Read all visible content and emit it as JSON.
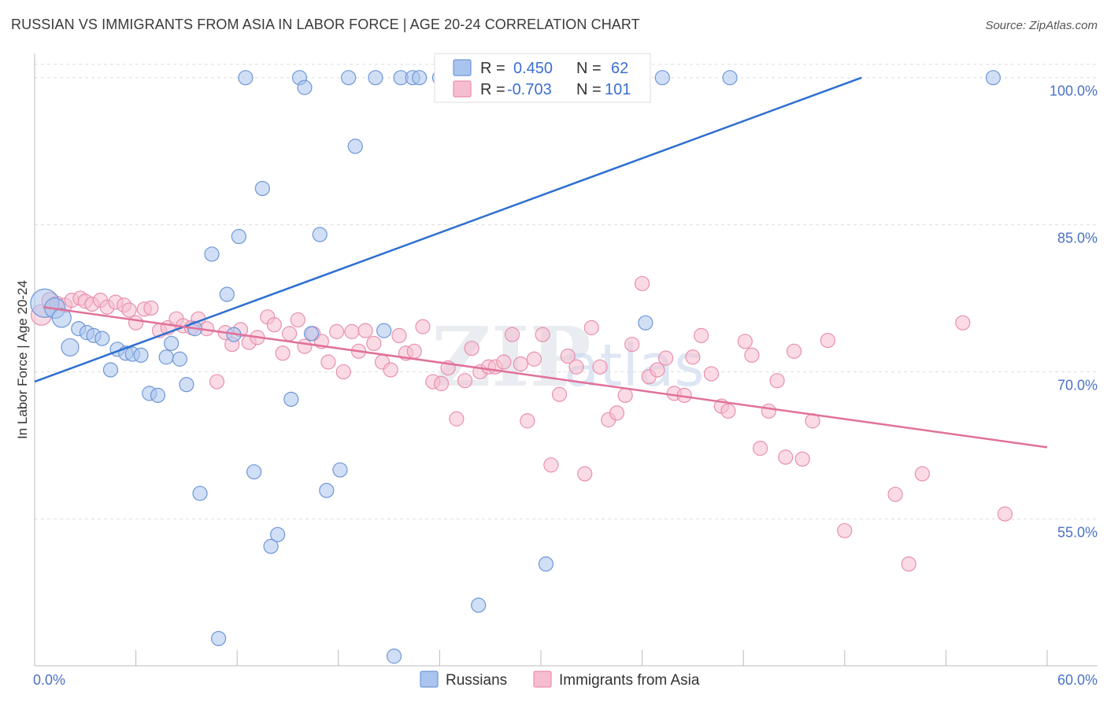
{
  "header": {
    "title": "RUSSIAN VS IMMIGRANTS FROM ASIA IN LABOR FORCE | AGE 20-24 CORRELATION CHART",
    "source": "Source: ZipAtlas.com"
  },
  "watermark": {
    "zip": "ZIP",
    "atlas": "atlas"
  },
  "colors": {
    "russians_fill": "#a9c4ee",
    "russians_stroke": "#6f97d6",
    "russians_line": "#2e6fd0",
    "asia_fill": "#f6bdd0",
    "asia_stroke": "#e890ad",
    "asia_line": "#e0719a",
    "grid": "#dddddd",
    "axis_text": "#4a72c4"
  },
  "legend": {
    "r_label": "R =",
    "n_label": "N =",
    "rows": [
      {
        "series": "Russians",
        "r": "0.450",
        "n": "62"
      },
      {
        "series": "Immigrants from Asia",
        "r": "-0.703",
        "n": "101"
      }
    ]
  },
  "bottom_legend": [
    "Russians",
    "Immigrants from Asia"
  ],
  "chart_data": {
    "type": "scatter",
    "title": "RUSSIAN VS IMMIGRANTS FROM ASIA IN LABOR FORCE | AGE 20-24 CORRELATION CHART",
    "xlabel": "",
    "ylabel": "In Labor Force | Age 20-24",
    "x_tick_labels": [
      "0.0%",
      "60.0%"
    ],
    "y_tick_labels": [
      "100.0%",
      "85.0%",
      "70.0%",
      "55.0%"
    ],
    "y_ticks": [
      100,
      85,
      70,
      55
    ],
    "xlim": [
      0,
      60
    ],
    "ylim": [
      40.5,
      101.5
    ],
    "grid": true,
    "legend_position": "top-center",
    "series": [
      {
        "name": "Russians",
        "r": 0.45,
        "n": 62,
        "trend": {
          "x": [
            0,
            49
          ],
          "y": [
            69.0,
            100.0
          ]
        },
        "points": [
          {
            "x": 0.6,
            "y": 77.0,
            "s": 18
          },
          {
            "x": 1.2,
            "y": 76.5,
            "s": 13
          },
          {
            "x": 1.6,
            "y": 75.5,
            "s": 12
          },
          {
            "x": 2.1,
            "y": 72.5,
            "s": 11
          },
          {
            "x": 2.6,
            "y": 74.4,
            "s": 9
          },
          {
            "x": 3.1,
            "y": 74.0,
            "s": 9
          },
          {
            "x": 3.5,
            "y": 73.7,
            "s": 9
          },
          {
            "x": 4.0,
            "y": 73.4,
            "s": 9
          },
          {
            "x": 4.5,
            "y": 70.2,
            "s": 9
          },
          {
            "x": 4.9,
            "y": 72.3,
            "s": 9
          },
          {
            "x": 5.4,
            "y": 71.9,
            "s": 9
          },
          {
            "x": 5.8,
            "y": 71.8,
            "s": 9
          },
          {
            "x": 6.3,
            "y": 71.7,
            "s": 9
          },
          {
            "x": 6.8,
            "y": 67.8,
            "s": 9
          },
          {
            "x": 7.3,
            "y": 67.6,
            "s": 9
          },
          {
            "x": 7.8,
            "y": 71.5,
            "s": 9
          },
          {
            "x": 8.1,
            "y": 72.9,
            "s": 9
          },
          {
            "x": 8.6,
            "y": 71.3,
            "s": 9
          },
          {
            "x": 9.0,
            "y": 68.7,
            "s": 9
          },
          {
            "x": 9.5,
            "y": 74.4,
            "s": 9
          },
          {
            "x": 9.8,
            "y": 57.6,
            "s": 9
          },
          {
            "x": 10.5,
            "y": 82.0,
            "s": 9
          },
          {
            "x": 10.9,
            "y": 42.8,
            "s": 9
          },
          {
            "x": 11.4,
            "y": 77.9,
            "s": 9
          },
          {
            "x": 11.8,
            "y": 73.8,
            "s": 9
          },
          {
            "x": 12.1,
            "y": 83.8,
            "s": 9
          },
          {
            "x": 12.5,
            "y": 100.0,
            "s": 9
          },
          {
            "x": 13.0,
            "y": 59.8,
            "s": 9
          },
          {
            "x": 13.5,
            "y": 88.7,
            "s": 9
          },
          {
            "x": 14.0,
            "y": 52.2,
            "s": 9
          },
          {
            "x": 14.4,
            "y": 53.4,
            "s": 9
          },
          {
            "x": 15.2,
            "y": 67.2,
            "s": 9
          },
          {
            "x": 15.7,
            "y": 100.0,
            "s": 9
          },
          {
            "x": 16.0,
            "y": 99.0,
            "s": 9
          },
          {
            "x": 16.4,
            "y": 73.9,
            "s": 9
          },
          {
            "x": 16.9,
            "y": 84.0,
            "s": 9
          },
          {
            "x": 17.3,
            "y": 57.9,
            "s": 9
          },
          {
            "x": 18.1,
            "y": 60.0,
            "s": 9
          },
          {
            "x": 18.6,
            "y": 100.0,
            "s": 9
          },
          {
            "x": 19.0,
            "y": 93.0,
            "s": 9
          },
          {
            "x": 20.2,
            "y": 100.0,
            "s": 9
          },
          {
            "x": 20.7,
            "y": 74.2,
            "s": 9
          },
          {
            "x": 21.3,
            "y": 41.0,
            "s": 9
          },
          {
            "x": 21.7,
            "y": 100.0,
            "s": 9
          },
          {
            "x": 22.4,
            "y": 100.0,
            "s": 9
          },
          {
            "x": 22.8,
            "y": 100.0,
            "s": 9
          },
          {
            "x": 24.0,
            "y": 100.0,
            "s": 9
          },
          {
            "x": 25.5,
            "y": 100.0,
            "s": 9
          },
          {
            "x": 26.3,
            "y": 46.2,
            "s": 9
          },
          {
            "x": 27.0,
            "y": 100.0,
            "s": 9
          },
          {
            "x": 29.0,
            "y": 100.0,
            "s": 9
          },
          {
            "x": 30.3,
            "y": 50.4,
            "s": 9
          },
          {
            "x": 31.0,
            "y": 100.0,
            "s": 9
          },
          {
            "x": 34.3,
            "y": 100.0,
            "s": 9
          },
          {
            "x": 35.7,
            "y": 100.0,
            "s": 9
          },
          {
            "x": 36.2,
            "y": 75.0,
            "s": 9
          },
          {
            "x": 37.2,
            "y": 100.0,
            "s": 9
          },
          {
            "x": 41.2,
            "y": 100.0,
            "s": 9
          },
          {
            "x": 56.8,
            "y": 100.0,
            "s": 9
          }
        ]
      },
      {
        "name": "Immigrants from Asia",
        "r": -0.703,
        "n": 101,
        "trend": {
          "x": [
            0.5,
            60
          ],
          "y": [
            76.6,
            62.3
          ]
        },
        "points": [
          {
            "x": 0.4,
            "y": 75.8,
            "s": 13
          },
          {
            "x": 0.9,
            "y": 77.3,
            "s": 10
          },
          {
            "x": 1.3,
            "y": 77.0,
            "s": 9
          },
          {
            "x": 1.8,
            "y": 76.8,
            "s": 9
          },
          {
            "x": 2.2,
            "y": 77.3,
            "s": 9
          },
          {
            "x": 2.7,
            "y": 77.5,
            "s": 9
          },
          {
            "x": 3.0,
            "y": 77.2,
            "s": 9
          },
          {
            "x": 3.4,
            "y": 76.9,
            "s": 9
          },
          {
            "x": 3.9,
            "y": 77.3,
            "s": 9
          },
          {
            "x": 4.3,
            "y": 76.6,
            "s": 9
          },
          {
            "x": 4.8,
            "y": 77.1,
            "s": 9
          },
          {
            "x": 5.3,
            "y": 76.8,
            "s": 9
          },
          {
            "x": 5.6,
            "y": 76.3,
            "s": 9
          },
          {
            "x": 6.0,
            "y": 75.0,
            "s": 9
          },
          {
            "x": 6.5,
            "y": 76.4,
            "s": 9
          },
          {
            "x": 6.9,
            "y": 76.5,
            "s": 9
          },
          {
            "x": 7.4,
            "y": 74.2,
            "s": 9
          },
          {
            "x": 7.9,
            "y": 74.5,
            "s": 9
          },
          {
            "x": 8.4,
            "y": 75.4,
            "s": 9
          },
          {
            "x": 8.8,
            "y": 74.7,
            "s": 9
          },
          {
            "x": 9.3,
            "y": 74.5,
            "s": 9
          },
          {
            "x": 9.7,
            "y": 75.4,
            "s": 9
          },
          {
            "x": 10.2,
            "y": 74.4,
            "s": 9
          },
          {
            "x": 10.8,
            "y": 69.0,
            "s": 9
          },
          {
            "x": 11.3,
            "y": 74.0,
            "s": 9
          },
          {
            "x": 11.7,
            "y": 72.8,
            "s": 9
          },
          {
            "x": 12.2,
            "y": 74.3,
            "s": 9
          },
          {
            "x": 12.7,
            "y": 73.0,
            "s": 9
          },
          {
            "x": 13.2,
            "y": 73.5,
            "s": 9
          },
          {
            "x": 13.8,
            "y": 75.6,
            "s": 9
          },
          {
            "x": 14.2,
            "y": 74.8,
            "s": 9
          },
          {
            "x": 14.7,
            "y": 71.9,
            "s": 9
          },
          {
            "x": 15.1,
            "y": 73.9,
            "s": 9
          },
          {
            "x": 15.6,
            "y": 75.3,
            "s": 9
          },
          {
            "x": 16.0,
            "y": 72.6,
            "s": 9
          },
          {
            "x": 16.5,
            "y": 73.9,
            "s": 9
          },
          {
            "x": 17.0,
            "y": 73.1,
            "s": 9
          },
          {
            "x": 17.4,
            "y": 71.0,
            "s": 9
          },
          {
            "x": 17.9,
            "y": 74.1,
            "s": 9
          },
          {
            "x": 18.3,
            "y": 70.0,
            "s": 9
          },
          {
            "x": 18.8,
            "y": 74.1,
            "s": 9
          },
          {
            "x": 19.2,
            "y": 72.1,
            "s": 9
          },
          {
            "x": 19.6,
            "y": 74.2,
            "s": 9
          },
          {
            "x": 20.1,
            "y": 72.9,
            "s": 9
          },
          {
            "x": 20.6,
            "y": 71.0,
            "s": 9
          },
          {
            "x": 21.1,
            "y": 70.2,
            "s": 9
          },
          {
            "x": 21.6,
            "y": 73.7,
            "s": 9
          },
          {
            "x": 22.0,
            "y": 71.9,
            "s": 9
          },
          {
            "x": 22.5,
            "y": 72.1,
            "s": 9
          },
          {
            "x": 23.0,
            "y": 74.6,
            "s": 9
          },
          {
            "x": 23.6,
            "y": 69.0,
            "s": 9
          },
          {
            "x": 24.1,
            "y": 68.8,
            "s": 9
          },
          {
            "x": 24.5,
            "y": 70.4,
            "s": 9
          },
          {
            "x": 25.0,
            "y": 65.2,
            "s": 9
          },
          {
            "x": 25.5,
            "y": 69.1,
            "s": 9
          },
          {
            "x": 25.9,
            "y": 72.4,
            "s": 9
          },
          {
            "x": 26.4,
            "y": 70.0,
            "s": 9
          },
          {
            "x": 26.9,
            "y": 70.5,
            "s": 9
          },
          {
            "x": 27.3,
            "y": 70.5,
            "s": 9
          },
          {
            "x": 27.8,
            "y": 71.0,
            "s": 9
          },
          {
            "x": 28.3,
            "y": 73.8,
            "s": 9
          },
          {
            "x": 28.8,
            "y": 70.8,
            "s": 9
          },
          {
            "x": 29.2,
            "y": 65.0,
            "s": 9
          },
          {
            "x": 29.6,
            "y": 71.3,
            "s": 9
          },
          {
            "x": 30.1,
            "y": 73.8,
            "s": 9
          },
          {
            "x": 30.6,
            "y": 60.5,
            "s": 9
          },
          {
            "x": 31.1,
            "y": 67.7,
            "s": 9
          },
          {
            "x": 31.6,
            "y": 71.6,
            "s": 9
          },
          {
            "x": 32.1,
            "y": 70.5,
            "s": 9
          },
          {
            "x": 32.6,
            "y": 59.6,
            "s": 9
          },
          {
            "x": 33.0,
            "y": 74.5,
            "s": 9
          },
          {
            "x": 33.5,
            "y": 70.5,
            "s": 9
          },
          {
            "x": 34.0,
            "y": 65.1,
            "s": 9
          },
          {
            "x": 34.5,
            "y": 65.8,
            "s": 9
          },
          {
            "x": 35.0,
            "y": 67.6,
            "s": 9
          },
          {
            "x": 35.4,
            "y": 72.8,
            "s": 9
          },
          {
            "x": 36.0,
            "y": 79.0,
            "s": 9
          },
          {
            "x": 36.4,
            "y": 69.5,
            "s": 9
          },
          {
            "x": 36.9,
            "y": 70.2,
            "s": 9
          },
          {
            "x": 37.4,
            "y": 71.4,
            "s": 9
          },
          {
            "x": 37.9,
            "y": 67.8,
            "s": 9
          },
          {
            "x": 38.5,
            "y": 67.6,
            "s": 9
          },
          {
            "x": 39.0,
            "y": 71.5,
            "s": 9
          },
          {
            "x": 39.5,
            "y": 73.7,
            "s": 9
          },
          {
            "x": 40.1,
            "y": 69.8,
            "s": 9
          },
          {
            "x": 40.7,
            "y": 66.5,
            "s": 9
          },
          {
            "x": 41.1,
            "y": 66.0,
            "s": 9
          },
          {
            "x": 42.1,
            "y": 73.1,
            "s": 9
          },
          {
            "x": 42.5,
            "y": 71.7,
            "s": 9
          },
          {
            "x": 43.0,
            "y": 62.2,
            "s": 9
          },
          {
            "x": 43.5,
            "y": 66.0,
            "s": 9
          },
          {
            "x": 44.0,
            "y": 69.1,
            "s": 9
          },
          {
            "x": 44.5,
            "y": 61.3,
            "s": 9
          },
          {
            "x": 45.0,
            "y": 72.1,
            "s": 9
          },
          {
            "x": 45.5,
            "y": 61.1,
            "s": 9
          },
          {
            "x": 46.1,
            "y": 65.0,
            "s": 9
          },
          {
            "x": 47.0,
            "y": 73.2,
            "s": 9
          },
          {
            "x": 48.0,
            "y": 53.8,
            "s": 9
          },
          {
            "x": 51.0,
            "y": 57.5,
            "s": 9
          },
          {
            "x": 51.8,
            "y": 50.4,
            "s": 9
          },
          {
            "x": 52.6,
            "y": 59.6,
            "s": 9
          },
          {
            "x": 55.0,
            "y": 75.0,
            "s": 9
          },
          {
            "x": 57.5,
            "y": 55.5,
            "s": 9
          }
        ]
      }
    ]
  }
}
